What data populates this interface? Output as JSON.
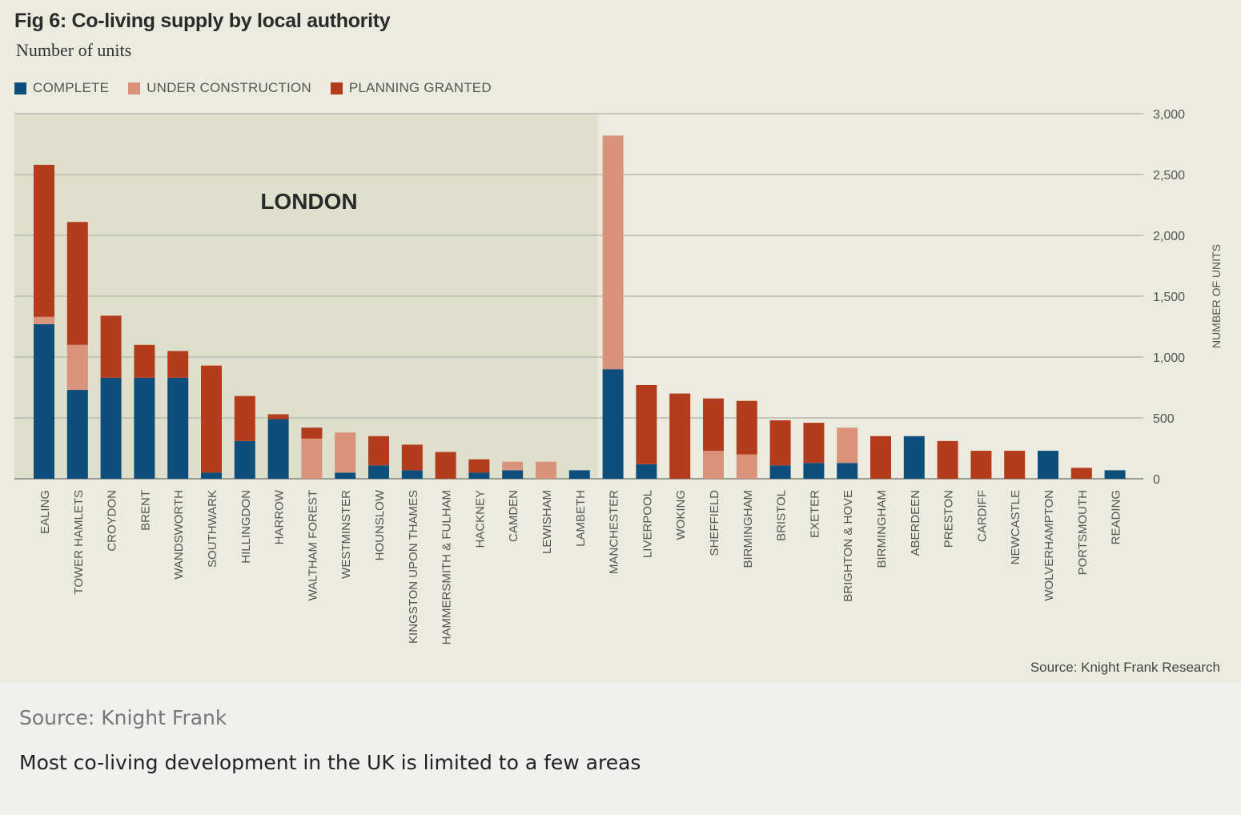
{
  "figure": {
    "title": "Fig 6: Co-living supply by local authority",
    "subtitle": "Number of units",
    "source": "Source: Knight Frank Research"
  },
  "caption": {
    "source": "Source: Knight Frank",
    "text": "Most co-living development in the UK is limited to a few areas"
  },
  "chart_data": {
    "type": "bar",
    "stacked": true,
    "region_label": "LONDON",
    "ylabel": "NUMBER OF UNITS",
    "ylim": [
      0,
      3000
    ],
    "yticks": [
      0,
      500,
      1000,
      1500,
      2000,
      2500,
      3000
    ],
    "ytick_labels": [
      "0",
      "500",
      "1,000",
      "1,500",
      "2,000",
      "2,500",
      "3,000"
    ],
    "y_axis_position": "right",
    "grid": true,
    "legend_position": "top-left",
    "categories": [
      "EALING",
      "TOWER HAMLETS",
      "CROYDON",
      "BRENT",
      "WANDSWORTH",
      "SOUTHWARK",
      "HILLINGDON",
      "HARROW",
      "WALTHAM FOREST",
      "WESTMINSTER",
      "HOUNSLOW",
      "KINGSTON UPON THAMES",
      "HAMMERSMITH & FULHAM",
      "HACKNEY",
      "CAMDEN",
      "LEWISHAM",
      "LAMBETH",
      "MANCHESTER",
      "LIVERPOOL",
      "WOKING",
      "SHEFFIELD",
      "BIRMINGHAM",
      "BRISTOL",
      "EXETER",
      "BRIGHTON & HOVE",
      "BIRMINGHAM",
      "ABERDEEN",
      "PRESTON",
      "CARDIFF",
      "NEWCASTLE",
      "WOLVERHAMPTON",
      "PORTSMOUTH",
      "READING"
    ],
    "london_count": 17,
    "series": [
      {
        "name": "COMPLETE",
        "color": "#0d4f7a",
        "values": [
          1270,
          730,
          830,
          830,
          830,
          50,
          310,
          490,
          0,
          50,
          110,
          70,
          0,
          50,
          70,
          0,
          70,
          900,
          120,
          0,
          0,
          0,
          110,
          130,
          130,
          0,
          350,
          0,
          0,
          0,
          230,
          0,
          70
        ]
      },
      {
        "name": "UNDER CONSTRUCTION",
        "color": "#d8937a",
        "values": [
          60,
          370,
          0,
          0,
          0,
          0,
          0,
          0,
          330,
          330,
          0,
          0,
          0,
          0,
          70,
          140,
          0,
          1920,
          0,
          0,
          230,
          200,
          0,
          0,
          290,
          0,
          0,
          0,
          0,
          0,
          0,
          0,
          0
        ]
      },
      {
        "name": "PLANNING GRANTED",
        "color": "#b43c1e",
        "values": [
          1250,
          1010,
          510,
          270,
          220,
          880,
          370,
          40,
          90,
          0,
          240,
          210,
          220,
          110,
          0,
          0,
          0,
          0,
          650,
          700,
          430,
          440,
          370,
          330,
          0,
          350,
          0,
          310,
          230,
          230,
          0,
          90,
          0
        ]
      }
    ]
  }
}
